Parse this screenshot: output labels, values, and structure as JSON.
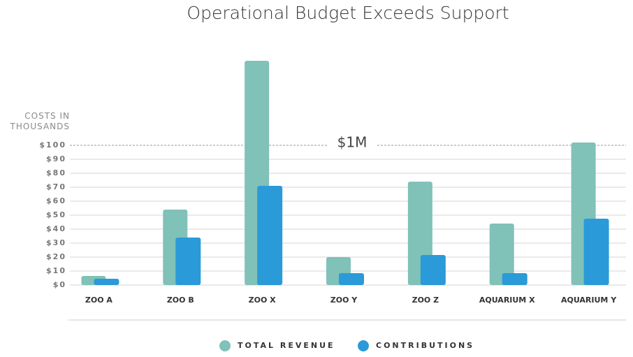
{
  "chart_data": {
    "type": "bar",
    "title": "Operational Budget Exceeds Support",
    "y_label": "COSTS IN THOUSANDS",
    "annotation": "$1M",
    "categories": [
      "ZOO A",
      "ZOO B",
      "ZOO X",
      "ZOO Y",
      "ZOO Z",
      "AQUARIUM X",
      "AQUARIUM Y"
    ],
    "series": [
      {
        "name": "TOTAL REVENUE",
        "color": "#80c1b8",
        "values": [
          6.5,
          54,
          160.5,
          20,
          74,
          44,
          102
        ]
      },
      {
        "name": "CONTRIBUTIONS",
        "color": "#2a9ad8",
        "values": [
          4.5,
          34,
          71,
          8.5,
          21.5,
          8.5,
          47.5
        ]
      }
    ],
    "ylim": [
      0,
      165
    ],
    "yticks": [
      {
        "value": 0,
        "label": "$0"
      },
      {
        "value": 10,
        "label": "$10"
      },
      {
        "value": 20,
        "label": "$20"
      },
      {
        "value": 30,
        "label": "$30"
      },
      {
        "value": 40,
        "label": "$40"
      },
      {
        "value": 50,
        "label": "$50"
      },
      {
        "value": 60,
        "label": "$60"
      },
      {
        "value": 70,
        "label": "$70"
      },
      {
        "value": 80,
        "label": "$80"
      },
      {
        "value": 90,
        "label": "$90"
      },
      {
        "value": 100,
        "label": "$100"
      }
    ],
    "grid": true
  }
}
